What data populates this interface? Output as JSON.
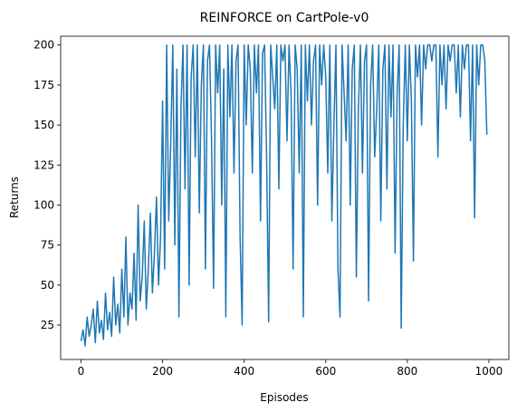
{
  "chart_data": {
    "type": "line",
    "title": "REINFORCE on CartPole-v0",
    "x_label": "Episodes",
    "y_label": "Returns",
    "x": [
      0,
      5,
      10,
      15,
      20,
      25,
      30,
      35,
      40,
      45,
      50,
      55,
      60,
      65,
      70,
      75,
      80,
      85,
      90,
      95,
      100,
      105,
      110,
      115,
      120,
      125,
      130,
      135,
      140,
      145,
      150,
      155,
      160,
      165,
      170,
      175,
      180,
      185,
      190,
      195,
      200,
      205,
      210,
      215,
      220,
      225,
      230,
      235,
      240,
      245,
      250,
      255,
      260,
      265,
      270,
      275,
      280,
      285,
      290,
      295,
      300,
      305,
      310,
      315,
      320,
      325,
      330,
      335,
      340,
      345,
      350,
      355,
      360,
      365,
      370,
      375,
      380,
      385,
      390,
      395,
      400,
      405,
      410,
      415,
      420,
      425,
      430,
      435,
      440,
      445,
      450,
      455,
      460,
      465,
      470,
      475,
      480,
      485,
      490,
      495,
      500,
      505,
      510,
      515,
      520,
      525,
      530,
      535,
      540,
      545,
      550,
      555,
      560,
      565,
      570,
      575,
      580,
      585,
      590,
      595,
      600,
      605,
      610,
      615,
      620,
      625,
      630,
      635,
      640,
      645,
      650,
      655,
      660,
      665,
      670,
      675,
      680,
      685,
      690,
      695,
      700,
      705,
      710,
      715,
      720,
      725,
      730,
      735,
      740,
      745,
      750,
      755,
      760,
      765,
      770,
      775,
      780,
      785,
      790,
      795,
      800,
      805,
      810,
      815,
      820,
      825,
      830,
      835,
      840,
      845,
      850,
      855,
      860,
      865,
      870,
      875,
      880,
      885,
      890,
      895,
      900,
      905,
      910,
      915,
      920,
      925,
      930,
      935,
      940,
      945,
      950,
      955,
      960,
      965,
      970,
      975,
      980,
      985,
      990,
      995
    ],
    "series": [
      {
        "name": "Returns",
        "color": "#1f77b4",
        "values": [
          15,
          22,
          12,
          30,
          18,
          25,
          35,
          14,
          40,
          20,
          28,
          16,
          45,
          22,
          33,
          18,
          55,
          25,
          38,
          20,
          60,
          30,
          80,
          25,
          45,
          35,
          70,
          28,
          100,
          40,
          55,
          90,
          35,
          60,
          95,
          45,
          70,
          105,
          50,
          80,
          165,
          60,
          200,
          90,
          140,
          200,
          75,
          185,
          30,
          160,
          200,
          110,
          200,
          50,
          180,
          200,
          130,
          200,
          95,
          175,
          200,
          60,
          190,
          200,
          140,
          48,
          200,
          170,
          200,
          100,
          185,
          30,
          200,
          155,
          200,
          120,
          190,
          200,
          80,
          25,
          200,
          150,
          200,
          185,
          120,
          200,
          170,
          200,
          90,
          195,
          200,
          130,
          27,
          200,
          180,
          160,
          200,
          110,
          200,
          190,
          200,
          140,
          200,
          170,
          60,
          200,
          185,
          120,
          200,
          30,
          200,
          165,
          200,
          150,
          190,
          200,
          100,
          200,
          175,
          200,
          180,
          120,
          200,
          90,
          150,
          200,
          60,
          30,
          200,
          170,
          140,
          200,
          100,
          185,
          200,
          55,
          160,
          200,
          120,
          190,
          200,
          40,
          175,
          200,
          130,
          160,
          200,
          90,
          185,
          200,
          110,
          200,
          155,
          200,
          70,
          170,
          200,
          23,
          150,
          200,
          140,
          200,
          165,
          65,
          200,
          180,
          200,
          150,
          200,
          185,
          200,
          200,
          190,
          200,
          200,
          130,
          200,
          175,
          200,
          160,
          200,
          190,
          200,
          200,
          170,
          200,
          155,
          200,
          185,
          200,
          200,
          140,
          200,
          92,
          200,
          175,
          200,
          200,
          190,
          144
        ]
      }
    ],
    "xlim": [
      -49.95,
      1048.95
    ],
    "xticks": [
      0,
      200,
      400,
      600,
      800,
      1000
    ],
    "ylim": [
      3.5,
      205.5
    ],
    "yticks": [
      25,
      50,
      75,
      100,
      125,
      150,
      175,
      200
    ]
  }
}
